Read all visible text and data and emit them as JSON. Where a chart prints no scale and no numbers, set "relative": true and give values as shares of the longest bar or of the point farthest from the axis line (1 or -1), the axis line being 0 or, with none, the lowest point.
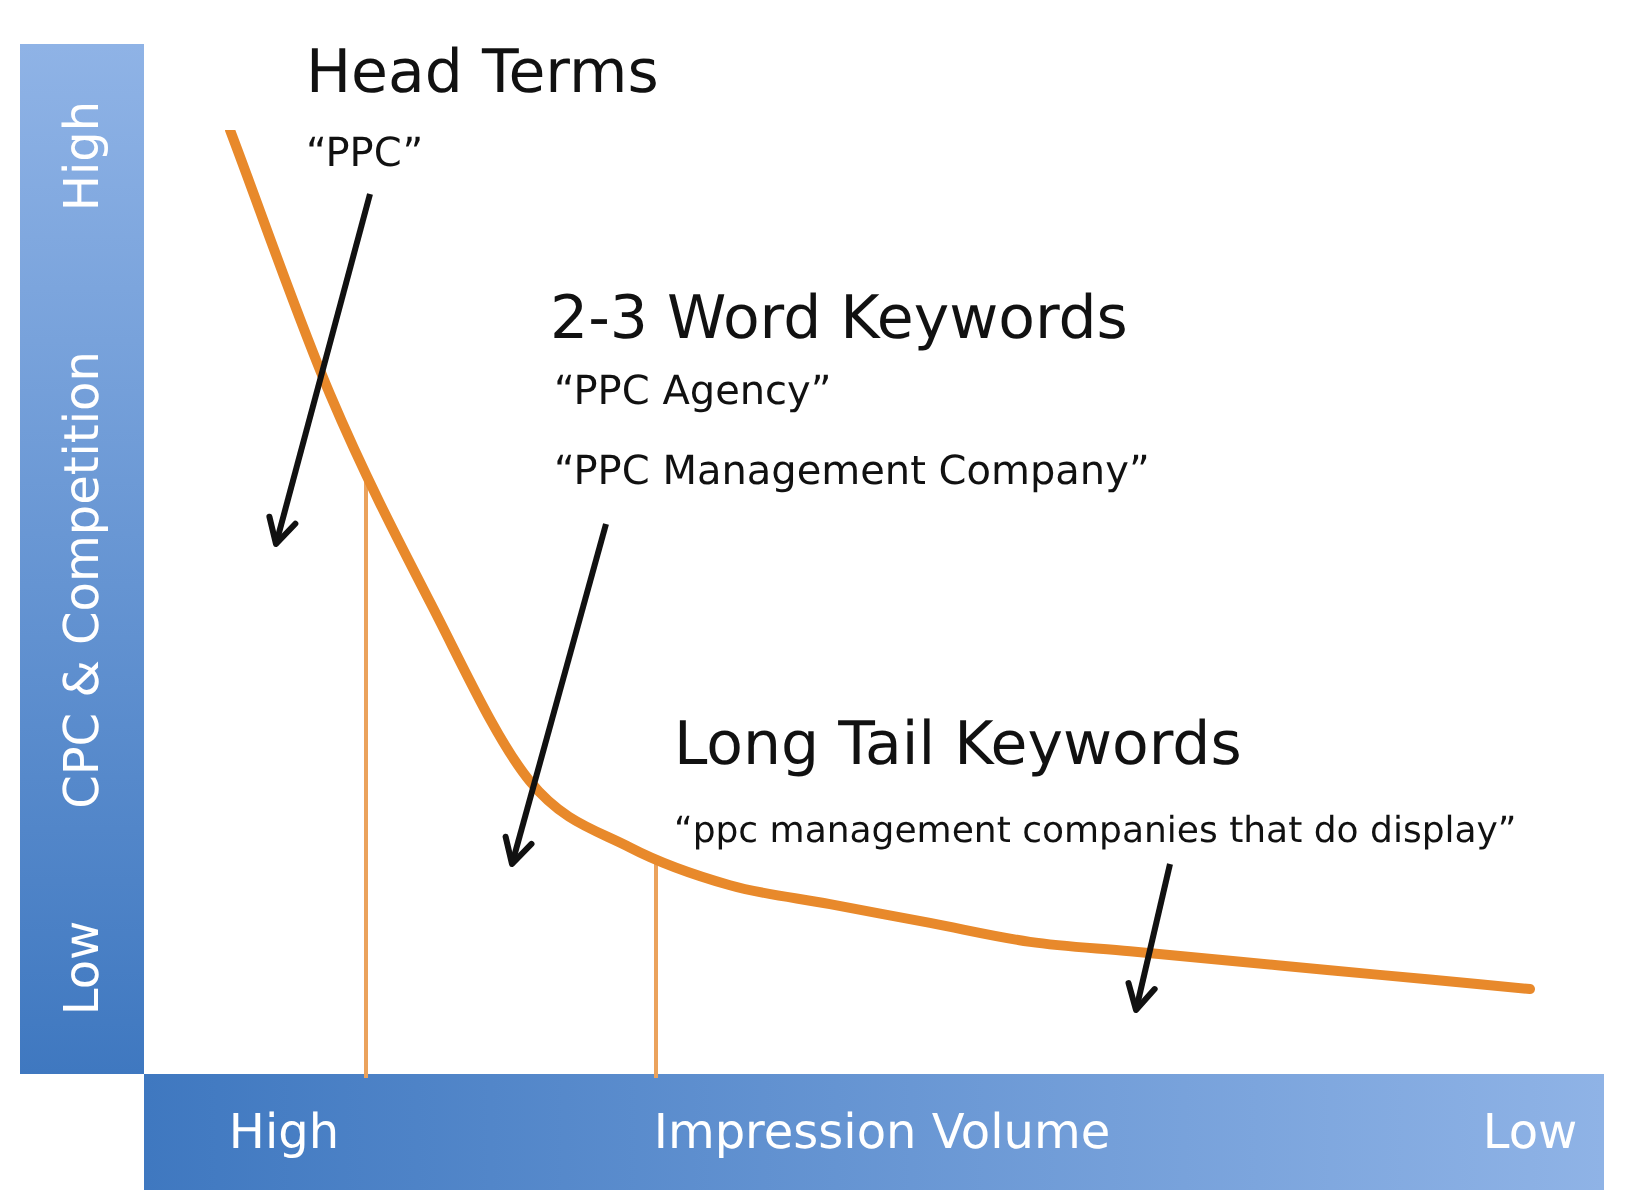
{
  "chart_data": {
    "type": "line",
    "relative": true,
    "xlabel": "Impression Volume",
    "ylabel": "CPC & Competition",
    "categories": [
      null,
      null,
      null,
      null,
      null,
      null,
      null,
      null,
      null,
      null,
      null,
      null,
      null,
      null
    ],
    "series": [
      {
        "color": "#e8892b",
        "values": [
          1.0,
          0.72,
          0.5,
          0.31,
          0.24,
          0.2,
          0.18,
          0.16,
          0.14,
          0.13,
          0.12,
          0.11,
          0.1,
          0.09
        ]
      }
    ],
    "annotations": [
      "Head Terms",
      "“PPC”",
      "2-3 Word Keywords",
      "“PPC Agency”",
      "“PPC Management Company”",
      "Long Tail Keywords",
      "“ppc management companies that do display”",
      "High",
      "Low",
      "High",
      "Low"
    ],
    "legend": false,
    "marker": "none",
    "line_style": "solid"
  }
}
